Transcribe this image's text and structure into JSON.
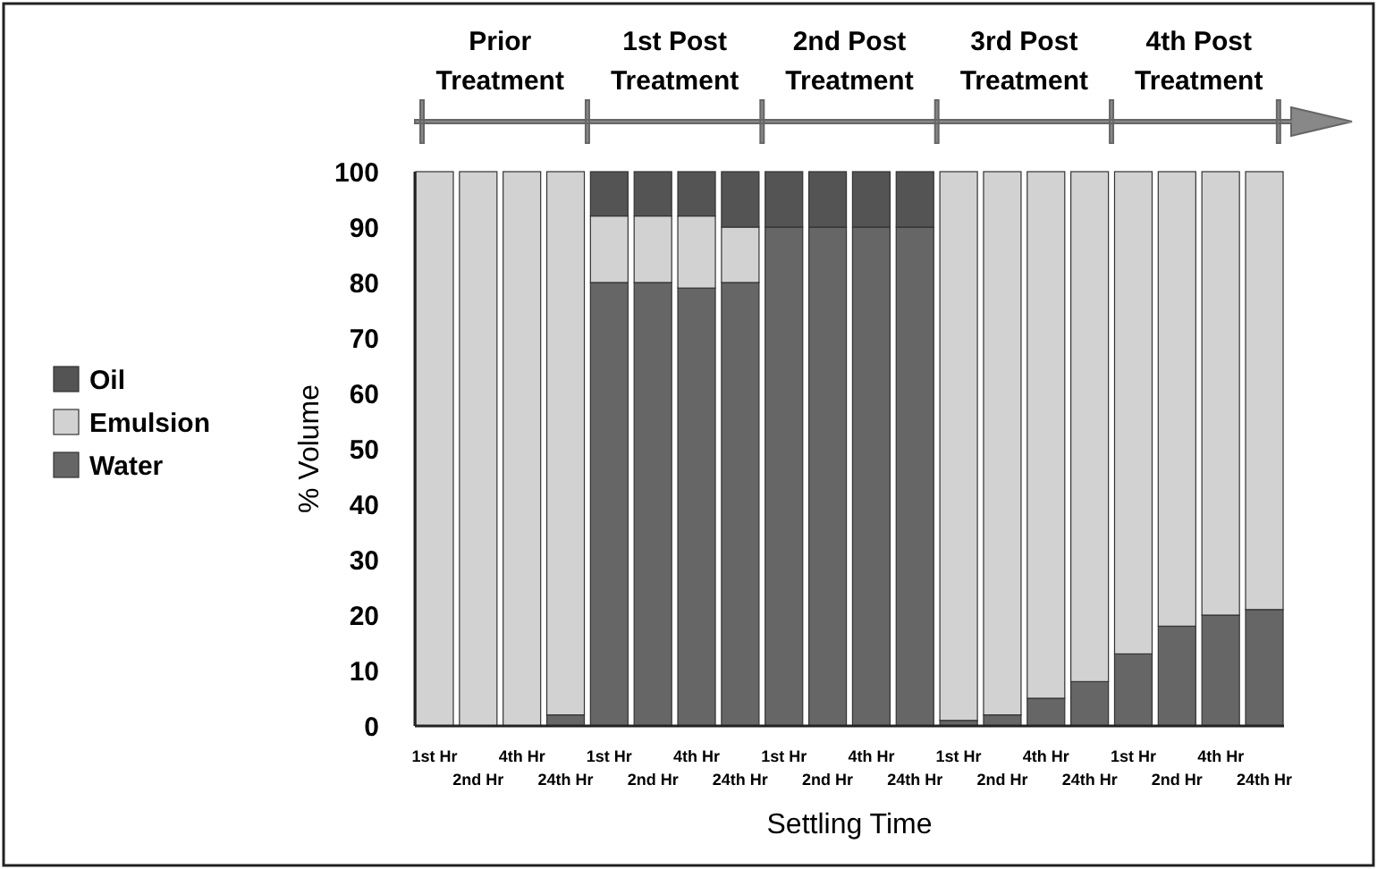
{
  "chart_data": {
    "type": "bar",
    "stacked": true,
    "xlabel": "Settling Time",
    "ylabel": "% Volume",
    "categories": [
      "1st Hr",
      "2nd Hr",
      "4th Hr",
      "24th Hr",
      "1st Hr",
      "2nd Hr",
      "4th Hr",
      "24th Hr",
      "1st Hr",
      "2nd Hr",
      "4th Hr",
      "24th Hr",
      "1st Hr",
      "2nd Hr",
      "4th Hr",
      "24th Hr",
      "1st Hr",
      "2nd Hr",
      "4th Hr",
      "24th Hr"
    ],
    "series": [
      {
        "name": "Water",
        "color": "#666666",
        "values": [
          0,
          0,
          0,
          2,
          80,
          80,
          79,
          80,
          90,
          90,
          90,
          90,
          1,
          2,
          5,
          8,
          13,
          18,
          20,
          21
        ]
      },
      {
        "name": "Emulsion",
        "color": "#d2d2d2",
        "values": [
          100,
          100,
          100,
          98,
          12,
          12,
          13,
          10,
          0,
          0,
          0,
          0,
          99,
          98,
          95,
          92,
          87,
          82,
          80,
          79
        ]
      },
      {
        "name": "Oil",
        "color": "#545454",
        "values": [
          0,
          0,
          0,
          0,
          8,
          8,
          8,
          10,
          10,
          10,
          10,
          10,
          0,
          0,
          0,
          0,
          0,
          0,
          0,
          0
        ]
      }
    ],
    "ylim": [
      0,
      100
    ],
    "yticks": [
      0,
      10,
      20,
      30,
      40,
      50,
      60,
      70,
      80,
      90,
      100
    ],
    "grid": false,
    "legend": "left",
    "annotations": [
      "Prior Treatment",
      "1st Post Treatment",
      "2nd Post Treatment",
      "3rd Post Treatment",
      "4th Post Treatment"
    ]
  }
}
